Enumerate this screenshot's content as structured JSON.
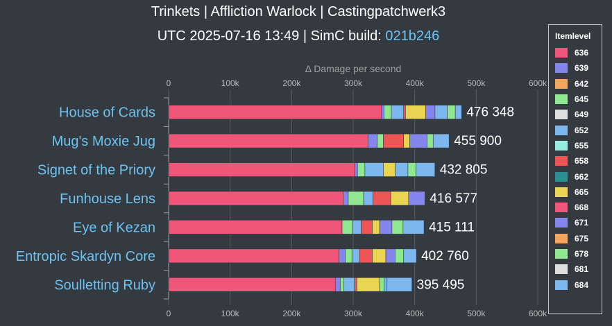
{
  "header": {
    "line1": "Trinkets | Affliction Warlock | Castingpatchwerk3",
    "line2_prefix": "UTC 2025-07-16 13:49 | SimC build: ",
    "build": "021b246"
  },
  "legend": {
    "title": "Itemlevel",
    "items": [
      {
        "label": "636",
        "color": "#f0557a"
      },
      {
        "label": "639",
        "color": "#8585ee"
      },
      {
        "label": "642",
        "color": "#f5a65b"
      },
      {
        "label": "645",
        "color": "#8fe88f"
      },
      {
        "label": "649",
        "color": "#dedede"
      },
      {
        "label": "652",
        "color": "#7cb7ee"
      },
      {
        "label": "655",
        "color": "#97ece0"
      },
      {
        "label": "658",
        "color": "#ee5656"
      },
      {
        "label": "662",
        "color": "#2a9090"
      },
      {
        "label": "665",
        "color": "#e9d552"
      },
      {
        "label": "668",
        "color": "#f0557a"
      },
      {
        "label": "671",
        "color": "#8585ee"
      },
      {
        "label": "675",
        "color": "#f5a65b"
      },
      {
        "label": "678",
        "color": "#8fe88f"
      },
      {
        "label": "681",
        "color": "#dedede"
      },
      {
        "label": "684",
        "color": "#7cb7ee"
      }
    ]
  },
  "chart_data": {
    "type": "bar",
    "orientation": "horizontal",
    "stacked": true,
    "xlabel": "Δ Damage per second",
    "xlim": [
      0,
      600000
    ],
    "xticks": [
      "0",
      "100k",
      "200k",
      "300k",
      "400k",
      "500k",
      "600k"
    ],
    "categories": [
      "House of Cards",
      "Mug's Moxie Jug",
      "Signet of the Priory",
      "Funhouse Lens",
      "Eye of Kezan",
      "Entropic Skardyn Core",
      "Soulletting Ruby"
    ],
    "totals": [
      "476 348",
      "455 900",
      "432 805",
      "416 577",
      "415 111",
      "402 760",
      "395 495"
    ],
    "segments": [
      [
        {
          "itemlevel": "668",
          "value": 346000
        },
        {
          "itemlevel": "671",
          "value": 4000
        },
        {
          "itemlevel": "678",
          "value": 12000
        },
        {
          "itemlevel": "684",
          "value": 20000
        },
        {
          "itemlevel": "658",
          "value": 3000
        },
        {
          "itemlevel": "665",
          "value": 33000
        },
        {
          "itemlevel": "671",
          "value": 15000
        },
        {
          "itemlevel": "684",
          "value": 20000
        },
        {
          "itemlevel": "678",
          "value": 13000
        },
        {
          "itemlevel": "684",
          "value": 10348
        }
      ],
      [
        {
          "itemlevel": "668",
          "value": 324000
        },
        {
          "itemlevel": "671",
          "value": 15000
        },
        {
          "itemlevel": "678",
          "value": 10000
        },
        {
          "itemlevel": "658",
          "value": 33000
        },
        {
          "itemlevel": "665",
          "value": 10000
        },
        {
          "itemlevel": "671",
          "value": 28000
        },
        {
          "itemlevel": "678",
          "value": 10000
        },
        {
          "itemlevel": "684",
          "value": 25900
        }
      ],
      [
        {
          "itemlevel": "668",
          "value": 303000
        },
        {
          "itemlevel": "671",
          "value": 4000
        },
        {
          "itemlevel": "678",
          "value": 12000
        },
        {
          "itemlevel": "684",
          "value": 30000
        },
        {
          "itemlevel": "665",
          "value": 19000
        },
        {
          "itemlevel": "684",
          "value": 21000
        },
        {
          "itemlevel": "678",
          "value": 13000
        },
        {
          "itemlevel": "684",
          "value": 30805
        }
      ],
      [
        {
          "itemlevel": "668",
          "value": 284000
        },
        {
          "itemlevel": "671",
          "value": 8000
        },
        {
          "itemlevel": "678",
          "value": 25000
        },
        {
          "itemlevel": "684",
          "value": 15000
        },
        {
          "itemlevel": "658",
          "value": 29000
        },
        {
          "itemlevel": "665",
          "value": 29000
        },
        {
          "itemlevel": "671",
          "value": 26577
        }
      ],
      [
        {
          "itemlevel": "668",
          "value": 282000
        },
        {
          "itemlevel": "678",
          "value": 17000
        },
        {
          "itemlevel": "684",
          "value": 14000
        },
        {
          "itemlevel": "658",
          "value": 18000
        },
        {
          "itemlevel": "665",
          "value": 12000
        },
        {
          "itemlevel": "671",
          "value": 20000
        },
        {
          "itemlevel": "678",
          "value": 18000
        },
        {
          "itemlevel": "684",
          "value": 34111
        }
      ],
      [
        {
          "itemlevel": "668",
          "value": 277000
        },
        {
          "itemlevel": "671",
          "value": 10000
        },
        {
          "itemlevel": "678",
          "value": 11000
        },
        {
          "itemlevel": "684",
          "value": 12000
        },
        {
          "itemlevel": "658",
          "value": 21000
        },
        {
          "itemlevel": "665",
          "value": 22000
        },
        {
          "itemlevel": "671",
          "value": 15000
        },
        {
          "itemlevel": "678",
          "value": 14000
        },
        {
          "itemlevel": "684",
          "value": 20760
        }
      ],
      [
        {
          "itemlevel": "668",
          "value": 271000
        },
        {
          "itemlevel": "671",
          "value": 8000
        },
        {
          "itemlevel": "678",
          "value": 6000
        },
        {
          "itemlevel": "684",
          "value": 17000
        },
        {
          "itemlevel": "658",
          "value": 4000
        },
        {
          "itemlevel": "665",
          "value": 37000
        },
        {
          "itemlevel": "678",
          "value": 7000
        },
        {
          "itemlevel": "684",
          "value": 5000
        },
        {
          "itemlevel": "684",
          "value": 40495
        }
      ]
    ]
  }
}
